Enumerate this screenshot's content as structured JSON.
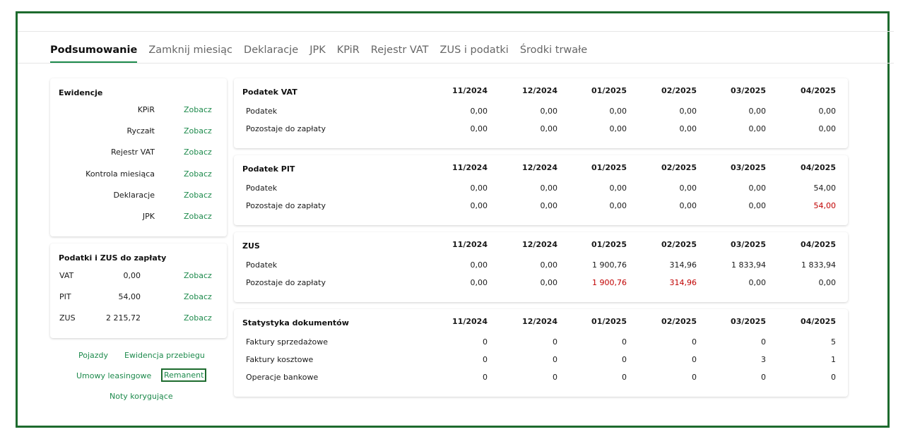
{
  "tabs": [
    "Podsumowanie",
    "Zamknij miesiąc",
    "Deklaracje",
    "JPK",
    "KPiR",
    "Rejestr VAT",
    "ZUS i podatki",
    "Środki trwałe"
  ],
  "ewidencje": {
    "title": "Ewidencje",
    "link_label": "Zobacz",
    "items": [
      "KPiR",
      "Ryczałt",
      "Rejestr VAT",
      "Kontrola miesiąca",
      "Deklaracje",
      "JPK"
    ]
  },
  "podatki": {
    "title": "Podatki i ZUS do zapłaty",
    "link_label": "Zobacz",
    "items": [
      {
        "name": "VAT",
        "value": "0,00"
      },
      {
        "name": "PIT",
        "value": "54,00"
      },
      {
        "name": "ZUS",
        "value": "2 215,72"
      }
    ]
  },
  "links": {
    "pojazdy": "Pojazdy",
    "ewidencja_przebiegu": "Ewidencja przebiegu",
    "umowy": "Umowy leasingowe",
    "remanent": "Remanent",
    "noty": "Noty korygujące"
  },
  "months": [
    "11/2024",
    "12/2024",
    "01/2025",
    "02/2025",
    "03/2025",
    "04/2025"
  ],
  "sections": [
    {
      "title": "Podatek VAT",
      "rows": [
        {
          "label": "Podatek",
          "values": [
            "0,00",
            "0,00",
            "0,00",
            "0,00",
            "0,00",
            "0,00"
          ],
          "red": [
            false,
            false,
            false,
            false,
            false,
            false
          ]
        },
        {
          "label": "Pozostaje do zapłaty",
          "values": [
            "0,00",
            "0,00",
            "0,00",
            "0,00",
            "0,00",
            "0,00"
          ],
          "red": [
            false,
            false,
            false,
            false,
            false,
            false
          ]
        }
      ]
    },
    {
      "title": "Podatek PIT",
      "rows": [
        {
          "label": "Podatek",
          "values": [
            "0,00",
            "0,00",
            "0,00",
            "0,00",
            "0,00",
            "54,00"
          ],
          "red": [
            false,
            false,
            false,
            false,
            false,
            false
          ]
        },
        {
          "label": "Pozostaje do zapłaty",
          "values": [
            "0,00",
            "0,00",
            "0,00",
            "0,00",
            "0,00",
            "54,00"
          ],
          "red": [
            false,
            false,
            false,
            false,
            false,
            true
          ]
        }
      ]
    },
    {
      "title": "ZUS",
      "rows": [
        {
          "label": "Podatek",
          "values": [
            "0,00",
            "0,00",
            "1 900,76",
            "314,96",
            "1 833,94",
            "1 833,94"
          ],
          "red": [
            false,
            false,
            false,
            false,
            false,
            false
          ]
        },
        {
          "label": "Pozostaje do zapłaty",
          "values": [
            "0,00",
            "0,00",
            "1 900,76",
            "314,96",
            "0,00",
            "0,00"
          ],
          "red": [
            false,
            false,
            true,
            true,
            false,
            false
          ]
        }
      ]
    },
    {
      "title": "Statystyka dokumentów",
      "rows": [
        {
          "label": "Faktury sprzedażowe",
          "values": [
            "0",
            "0",
            "0",
            "0",
            "0",
            "5"
          ],
          "red": [
            false,
            false,
            false,
            false,
            false,
            false
          ]
        },
        {
          "label": "Faktury kosztowe",
          "values": [
            "0",
            "0",
            "0",
            "0",
            "3",
            "1"
          ],
          "red": [
            false,
            false,
            false,
            false,
            false,
            false
          ]
        },
        {
          "label": "Operacje bankowe",
          "values": [
            "0",
            "0",
            "0",
            "0",
            "0",
            "0"
          ],
          "red": [
            false,
            false,
            false,
            false,
            false,
            false
          ]
        }
      ]
    }
  ]
}
